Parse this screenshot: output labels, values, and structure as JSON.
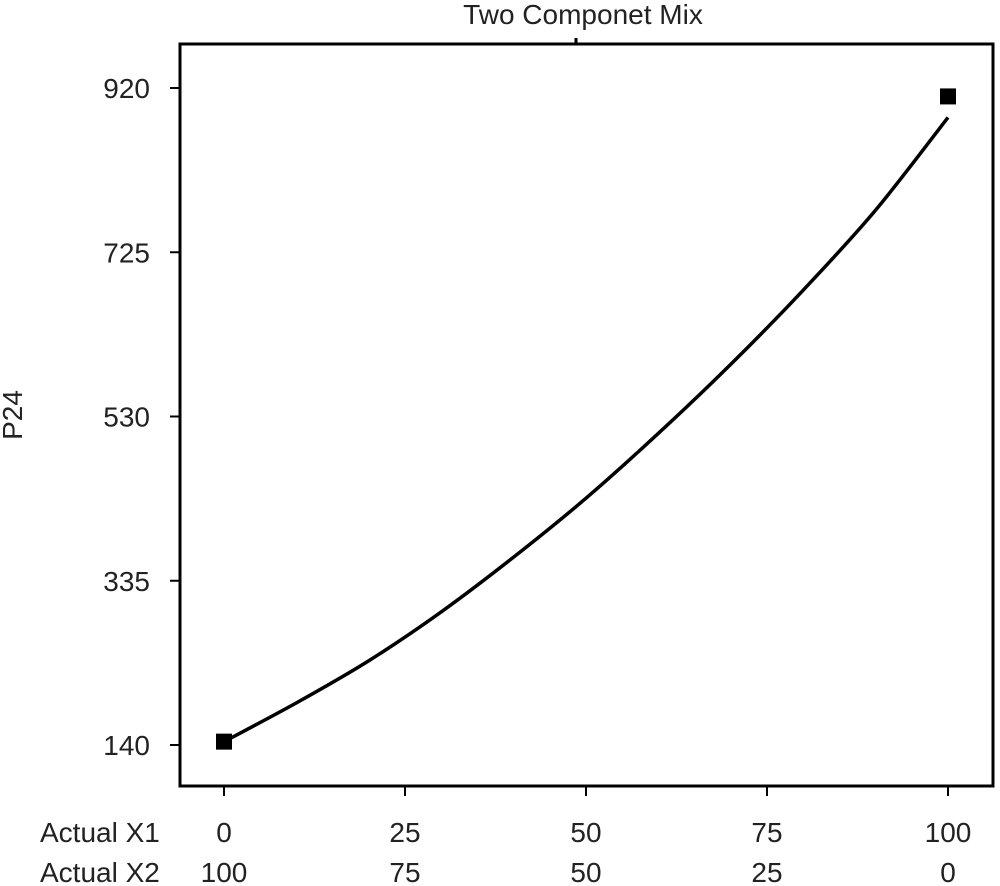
{
  "chart_data": {
    "type": "line",
    "title": "Two Componet Mix",
    "ylabel": "P24",
    "x1_label": "Actual X1",
    "x2_label": "Actual X2",
    "x1_ticks": [
      "0",
      "25",
      "50",
      "75",
      "100"
    ],
    "x2_ticks": [
      "100",
      "75",
      "50",
      "25",
      "0"
    ],
    "y_ticks": [
      "140",
      "335",
      "530",
      "725",
      "920"
    ],
    "xlim": [
      0,
      100
    ],
    "ylim": [
      140,
      920
    ],
    "grid": false,
    "series": [
      {
        "x": [
          0,
          10,
          20,
          30,
          40,
          50,
          60,
          70,
          80,
          90,
          100
        ],
        "y": [
          144,
          190,
          240,
          298,
          363,
          433,
          510,
          592,
          680,
          775,
          885
        ]
      }
    ],
    "design_points": [
      {
        "x": 0,
        "y": 144
      },
      {
        "x": 100,
        "y": 910
      }
    ]
  }
}
